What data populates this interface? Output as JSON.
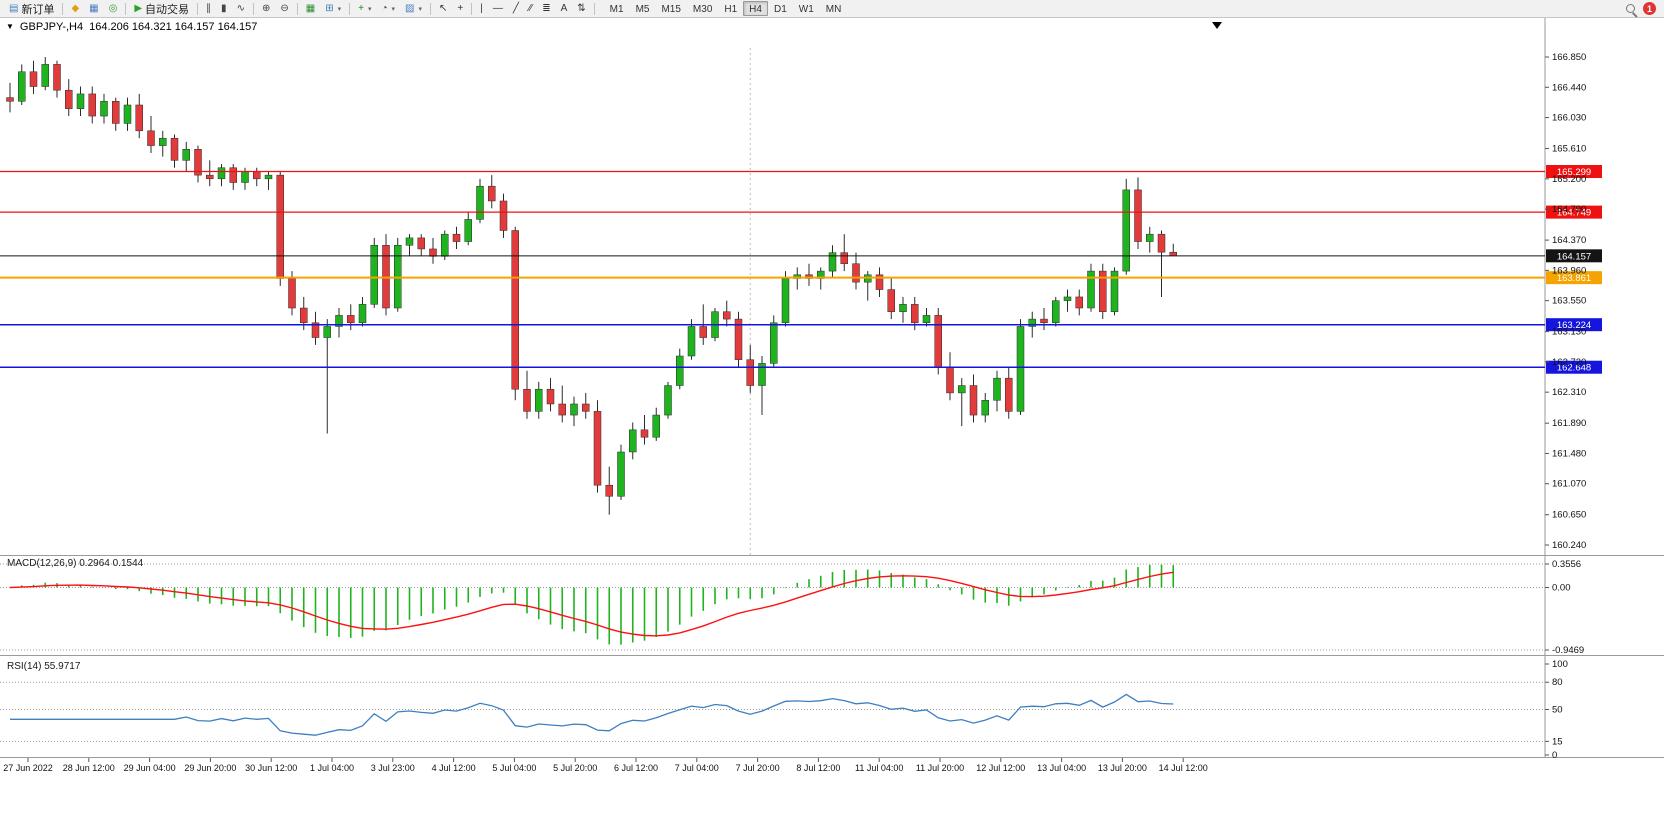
{
  "toolbar": {
    "groups": [
      [
        {
          "name": "new-order-button",
          "icon": "new-order-icon",
          "glyph": "▤",
          "color": "#4a7dbf",
          "label": "新订单"
        }
      ],
      [
        {
          "name": "metaeditor-icon",
          "glyph": "◆",
          "color": "#e0a010"
        },
        {
          "name": "new-chart-icon",
          "glyph": "▦",
          "color": "#4a7dbf"
        },
        {
          "name": "profiles-icon",
          "glyph": "◎",
          "color": "#3a9a3a"
        }
      ],
      [
        {
          "name": "auto-trading-button",
          "icon": "auto-trading-icon",
          "glyph": "▶",
          "color": "#27a427",
          "label": "自动交易"
        }
      ],
      [
        {
          "name": "bar-chart-icon",
          "glyph": "∥",
          "color": "#444"
        },
        {
          "name": "candlestick-chart-icon",
          "glyph": "▮",
          "color": "#444"
        },
        {
          "name": "line-chart-icon",
          "glyph": "∿",
          "color": "#444"
        }
      ],
      [
        {
          "name": "zoom-in-icon",
          "glyph": "⊕",
          "color": "#444"
        },
        {
          "name": "zoom-out-icon",
          "glyph": "⊖",
          "color": "#444"
        }
      ],
      [
        {
          "name": "grid-icon",
          "glyph": "▦",
          "color": "#2e8b2e"
        },
        {
          "name": "tile-windows-icon",
          "glyph": "⊞",
          "color": "#4a7dbf",
          "dropdown": true
        }
      ],
      [
        {
          "name": "indicators-button",
          "icon": "indicators-plus-icon",
          "glyph": "+",
          "color": "#1a8a1a",
          "dropdown": true
        },
        {
          "name": "periods-button",
          "icon": "clock-icon",
          "glyph": "◔",
          "color": "#444",
          "dropdown": true
        },
        {
          "name": "templates-button",
          "icon": "template-icon",
          "glyph": "▨",
          "color": "#4a7dbf",
          "dropdown": true
        }
      ],
      [
        {
          "name": "cursor-icon",
          "glyph": "↖",
          "color": "#333"
        },
        {
          "name": "crosshair-icon",
          "glyph": "+",
          "color": "#333"
        }
      ],
      [
        {
          "name": "vertical-line-icon",
          "glyph": "|",
          "color": "#333"
        },
        {
          "name": "horizontal-line-icon",
          "glyph": "—",
          "color": "#333"
        },
        {
          "name": "trendline-icon",
          "glyph": "╱",
          "color": "#333"
        },
        {
          "name": "equidistant-channel-icon",
          "glyph": "∕∕",
          "color": "#333"
        },
        {
          "name": "fibonacci-icon",
          "glyph": "≣",
          "color": "#333"
        },
        {
          "name": "text-icon",
          "glyph": "A",
          "color": "#333"
        },
        {
          "name": "arrows-icon",
          "glyph": "⇅",
          "color": "#333"
        }
      ]
    ],
    "timeframes": [
      "M1",
      "M5",
      "M15",
      "M30",
      "H1",
      "H4",
      "D1",
      "W1",
      "MN"
    ],
    "active_timeframe": "H4",
    "badge_count": "1"
  },
  "chart": {
    "collapse_icon": "▼",
    "title_symbol": "GBPJPY-,H4",
    "title_quotes": "164.206 164.321 164.157 164.157"
  },
  "indicators": {
    "macd_label": "MACD(12,26,9) 0.2964 0.1544",
    "rsi_label": "RSI(14) 55.9717"
  },
  "chart_data": {
    "type": "candlestick",
    "symbol": "GBPJPY",
    "timeframe": "H4",
    "quotes": {
      "open": "164.206",
      "high": "164.321",
      "low": "164.157",
      "close": "164.157"
    },
    "ylim": [
      160.24,
      166.85
    ],
    "colors": {
      "up": "#1fb31f",
      "down": "#e23b3b",
      "wick": "#2b2b2b",
      "macd_hist": "#1fb31f",
      "macd_signal": "#ff1010",
      "rsi_line": "#3e7fc1"
    },
    "y_ticks": [
      "166.850",
      "166.440",
      "166.030",
      "165.610",
      "165.200",
      "164.790",
      "164.370",
      "163.960",
      "163.550",
      "163.130",
      "162.720",
      "162.310",
      "161.890",
      "161.480",
      "161.070",
      "160.650",
      "160.240"
    ],
    "hlines": [
      {
        "name": "resistance-line-1",
        "price": 165.299,
        "label": "165.299",
        "color": "#ee1111",
        "width": 1.3
      },
      {
        "name": "resistance-line-2",
        "price": 164.749,
        "label": "164.749",
        "color": "#ee1111",
        "width": 1.3
      },
      {
        "name": "bid-price-line",
        "price": 164.157,
        "label": "164.157",
        "color": "#141414",
        "width": 1
      },
      {
        "name": "pivot-line",
        "price": 163.861,
        "label": "163.861",
        "color": "#f5a300",
        "width": 2
      },
      {
        "name": "support-line-1",
        "price": 163.224,
        "label": "163.224",
        "color": "#1515dd",
        "width": 1.5
      },
      {
        "name": "support-line-2",
        "price": 162.648,
        "label": "162.648",
        "color": "#1515dd",
        "width": 1.5
      }
    ],
    "x_labels": [
      "27 Jun 2022",
      "28 Jun 12:00",
      "29 Jun 04:00",
      "29 Jun 20:00",
      "30 Jun 12:00",
      "1 Jul 04:00",
      "3 Jul 23:00",
      "4 Jul 12:00",
      "5 Jul 04:00",
      "5 Jul 20:00",
      "6 Jul 12:00",
      "7 Jul 04:00",
      "7 Jul 20:00",
      "8 Jul 12:00",
      "11 Jul 04:00",
      "11 Jul 20:00",
      "12 Jul 12:00",
      "13 Jul 04:00",
      "13 Jul 20:00",
      "14 Jul 12:00"
    ],
    "vline_index": 63,
    "macd_params": [
      12,
      26,
      9
    ],
    "macd_axis": [
      "0.3556",
      "0.00",
      "-0.9469"
    ],
    "rsi_period": 14,
    "rsi_axis": [
      "100",
      "80",
      "50",
      "15",
      "0"
    ],
    "rsi_levels": [
      80,
      50,
      15
    ],
    "ohlc": [
      [
        166.3,
        166.5,
        166.1,
        166.25
      ],
      [
        166.25,
        166.75,
        166.2,
        166.65
      ],
      [
        166.65,
        166.8,
        166.35,
        166.45
      ],
      [
        166.45,
        166.85,
        166.4,
        166.75
      ],
      [
        166.75,
        166.8,
        166.3,
        166.4
      ],
      [
        166.4,
        166.55,
        166.05,
        166.15
      ],
      [
        166.15,
        166.45,
        166.05,
        166.35
      ],
      [
        166.35,
        166.45,
        165.95,
        166.05
      ],
      [
        166.05,
        166.35,
        165.95,
        166.25
      ],
      [
        166.25,
        166.3,
        165.85,
        165.95
      ],
      [
        165.95,
        166.3,
        165.85,
        166.2
      ],
      [
        166.2,
        166.35,
        165.75,
        165.85
      ],
      [
        165.85,
        166.05,
        165.55,
        165.65
      ],
      [
        165.65,
        165.85,
        165.5,
        165.75
      ],
      [
        165.75,
        165.8,
        165.35,
        165.45
      ],
      [
        165.45,
        165.7,
        165.3,
        165.6
      ],
      [
        165.6,
        165.65,
        165.15,
        165.25
      ],
      [
        165.25,
        165.45,
        165.1,
        165.2
      ],
      [
        165.2,
        165.4,
        165.1,
        165.35
      ],
      [
        165.35,
        165.4,
        165.05,
        165.15
      ],
      [
        165.15,
        165.35,
        165.05,
        165.3
      ],
      [
        165.3,
        165.35,
        165.1,
        165.2
      ],
      [
        165.2,
        165.3,
        165.05,
        165.25
      ],
      [
        165.25,
        165.3,
        163.75,
        163.85
      ],
      [
        163.85,
        163.95,
        163.35,
        163.45
      ],
      [
        163.45,
        163.6,
        163.15,
        163.25
      ],
      [
        163.25,
        163.4,
        162.95,
        163.05
      ],
      [
        163.05,
        163.3,
        161.75,
        163.2
      ],
      [
        163.2,
        163.45,
        163.05,
        163.35
      ],
      [
        163.35,
        163.5,
        163.15,
        163.25
      ],
      [
        163.25,
        163.6,
        163.2,
        163.5
      ],
      [
        163.5,
        164.4,
        163.45,
        164.3
      ],
      [
        164.3,
        164.45,
        163.35,
        163.45
      ],
      [
        163.45,
        164.4,
        163.4,
        164.3
      ],
      [
        164.3,
        164.45,
        164.15,
        164.4
      ],
      [
        164.4,
        164.45,
        164.15,
        164.25
      ],
      [
        164.25,
        164.4,
        164.05,
        164.15
      ],
      [
        164.15,
        164.5,
        164.1,
        164.45
      ],
      [
        164.45,
        164.55,
        164.25,
        164.35
      ],
      [
        164.35,
        164.75,
        164.3,
        164.65
      ],
      [
        164.65,
        165.2,
        164.6,
        165.1
      ],
      [
        165.1,
        165.25,
        164.8,
        164.9
      ],
      [
        164.9,
        165.0,
        164.4,
        164.5
      ],
      [
        164.5,
        164.55,
        162.2,
        162.35
      ],
      [
        162.35,
        162.6,
        161.95,
        162.05
      ],
      [
        162.05,
        162.45,
        161.95,
        162.35
      ],
      [
        162.35,
        162.5,
        162.05,
        162.15
      ],
      [
        162.15,
        162.4,
        161.9,
        162.0
      ],
      [
        162.0,
        162.25,
        161.85,
        162.15
      ],
      [
        162.15,
        162.3,
        161.95,
        162.05
      ],
      [
        162.05,
        162.2,
        160.95,
        161.05
      ],
      [
        161.05,
        161.3,
        160.65,
        160.9
      ],
      [
        160.9,
        161.6,
        160.85,
        161.5
      ],
      [
        161.5,
        161.9,
        161.4,
        161.8
      ],
      [
        161.8,
        162.0,
        161.6,
        161.7
      ],
      [
        161.7,
        162.1,
        161.65,
        162.0
      ],
      [
        162.0,
        162.45,
        161.95,
        162.4
      ],
      [
        162.4,
        162.9,
        162.35,
        162.8
      ],
      [
        162.8,
        163.3,
        162.75,
        163.2
      ],
      [
        163.2,
        163.5,
        162.95,
        163.05
      ],
      [
        163.05,
        163.45,
        163.0,
        163.4
      ],
      [
        163.4,
        163.55,
        163.2,
        163.3
      ],
      [
        163.3,
        163.4,
        162.65,
        162.75
      ],
      [
        162.75,
        162.95,
        162.3,
        162.4
      ],
      [
        162.4,
        162.8,
        162.0,
        162.7
      ],
      [
        162.7,
        163.35,
        162.65,
        163.25
      ],
      [
        163.25,
        163.95,
        163.2,
        163.85
      ],
      [
        163.85,
        164.0,
        163.7,
        163.9
      ],
      [
        163.9,
        164.05,
        163.75,
        163.85
      ],
      [
        163.85,
        164.0,
        163.7,
        163.95
      ],
      [
        163.95,
        164.3,
        163.85,
        164.2
      ],
      [
        164.2,
        164.45,
        163.95,
        164.05
      ],
      [
        164.05,
        164.2,
        163.7,
        163.8
      ],
      [
        163.8,
        163.95,
        163.55,
        163.9
      ],
      [
        163.9,
        164.0,
        163.6,
        163.7
      ],
      [
        163.7,
        163.85,
        163.3,
        163.4
      ],
      [
        163.4,
        163.6,
        163.25,
        163.5
      ],
      [
        163.5,
        163.6,
        163.15,
        163.25
      ],
      [
        163.25,
        163.45,
        163.2,
        163.35
      ],
      [
        163.35,
        163.45,
        162.55,
        162.65
      ],
      [
        162.65,
        162.85,
        162.2,
        162.3
      ],
      [
        162.3,
        162.5,
        161.85,
        162.4
      ],
      [
        162.4,
        162.55,
        161.9,
        162.0
      ],
      [
        162.0,
        162.3,
        161.9,
        162.2
      ],
      [
        162.2,
        162.6,
        162.05,
        162.5
      ],
      [
        162.5,
        162.65,
        161.95,
        162.05
      ],
      [
        162.05,
        163.3,
        162.0,
        163.2
      ],
      [
        163.2,
        163.4,
        163.05,
        163.3
      ],
      [
        163.3,
        163.45,
        163.15,
        163.25
      ],
      [
        163.25,
        163.6,
        163.2,
        163.55
      ],
      [
        163.55,
        163.7,
        163.4,
        163.6
      ],
      [
        163.6,
        163.7,
        163.35,
        163.45
      ],
      [
        163.45,
        164.05,
        163.4,
        163.95
      ],
      [
        163.95,
        164.05,
        163.3,
        163.4
      ],
      [
        163.4,
        164.0,
        163.35,
        163.95
      ],
      [
        163.95,
        165.2,
        163.9,
        165.05
      ],
      [
        165.05,
        165.22,
        164.25,
        164.35
      ],
      [
        164.35,
        164.55,
        164.2,
        164.45
      ],
      [
        164.45,
        164.5,
        163.6,
        164.206
      ],
      [
        164.206,
        164.321,
        164.157,
        164.157
      ]
    ]
  }
}
